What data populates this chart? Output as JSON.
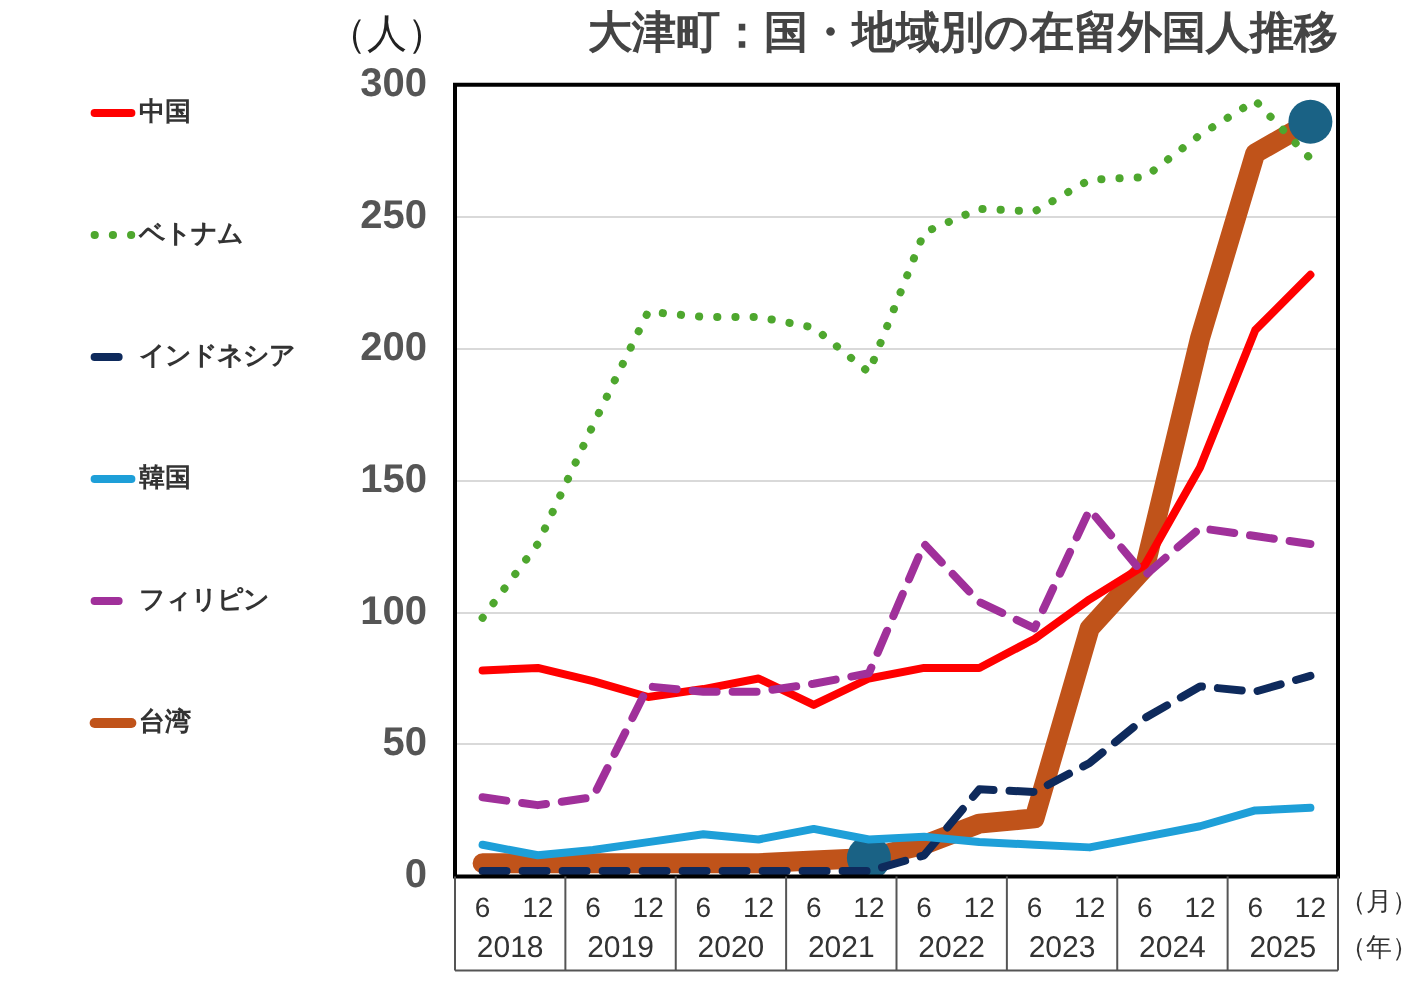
{
  "chart_data": {
    "type": "line",
    "title": "大津町：国・地域別の在留外国人推移",
    "ylabel": "（人）",
    "categories": [
      "6",
      "12",
      "6",
      "12",
      "6",
      "12",
      "6",
      "12",
      "6",
      "12",
      "6",
      "12",
      "6",
      "12",
      "6",
      "12"
    ],
    "annotations": [
      "2018",
      "2019",
      "2020",
      "2021",
      "2022",
      "2023",
      "2024",
      "2025",
      "（月）",
      "（年）"
    ],
    "series": [
      {
        "name": "中国",
        "color": "#ff0000",
        "line_style": "solid",
        "values": [
          78,
          79,
          74,
          68,
          71,
          75,
          65,
          75,
          79,
          79,
          90,
          105,
          118,
          155,
          207,
          228
        ]
      },
      {
        "name": "ベトナム",
        "color": "#4ea72e",
        "line_style": "dotted",
        "values": [
          98,
          126,
          171,
          214,
          212,
          212,
          208,
          191,
          244,
          253,
          252,
          264,
          265,
          281,
          294,
          272
        ]
      },
      {
        "name": "インドネシア",
        "color": "#0e2a5c",
        "line_style": "dashed",
        "values": [
          2,
          2,
          2,
          2,
          2,
          2,
          2,
          2,
          8,
          33,
          32,
          43,
          60,
          72,
          70,
          76
        ]
      },
      {
        "name": "韓国",
        "color": "#1e9fd8",
        "line_style": "solid",
        "values": [
          12,
          8,
          10,
          13,
          16,
          14,
          18,
          14,
          15,
          13,
          12,
          11,
          15,
          19,
          25,
          26
        ]
      },
      {
        "name": "フィリピン",
        "color": "#a0309a",
        "line_style": "dashed",
        "values": [
          30,
          27,
          30,
          72,
          70,
          70,
          73,
          77,
          126,
          104,
          94,
          139,
          114,
          132,
          129,
          126
        ]
      },
      {
        "name": "台湾",
        "color": "#c0531a",
        "line_style": "solid",
        "values": [
          5,
          5,
          5,
          5,
          5,
          5,
          6,
          7,
          12,
          20,
          22,
          94,
          117,
          204,
          274,
          286
        ]
      }
    ],
    "ylim": [
      0,
      300
    ],
    "yticks": [
      0,
      50,
      100,
      150,
      200,
      250,
      300
    ],
    "grid": "y",
    "legend": "left"
  }
}
